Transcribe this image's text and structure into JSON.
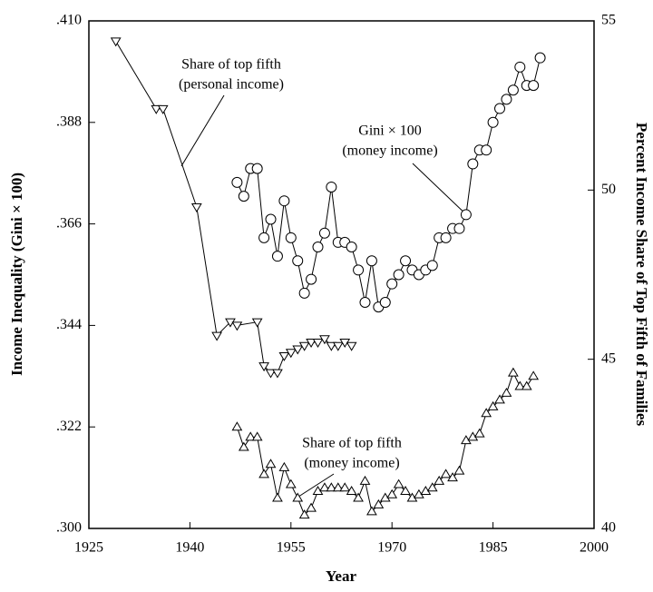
{
  "chart_data": {
    "type": "line",
    "x_label": "Year",
    "y_label": "Income Inequality (Gini × 100)",
    "y2_label": "Percent Income Share of Top Fifth of Families",
    "xlim": [
      1925,
      2000
    ],
    "xticks": [
      1925,
      1940,
      1955,
      1970,
      1985,
      2000
    ],
    "ylim": [
      0.3,
      0.41
    ],
    "yticks": [
      {
        "value": 0.3,
        "label": ".300"
      },
      {
        "value": 0.322,
        "label": ".322"
      },
      {
        "value": 0.344,
        "label": ".344"
      },
      {
        "value": 0.366,
        "label": ".366"
      },
      {
        "value": 0.388,
        "label": ".388"
      },
      {
        "value": 0.41,
        "label": ".410"
      }
    ],
    "y2lim": [
      40,
      55
    ],
    "y2ticks": [
      40,
      45,
      50,
      55
    ],
    "annotations": [
      {
        "lines": [
          "Share of top fifth",
          "(personal income)"
        ]
      },
      {
        "lines": [
          "Gini × 100",
          "(money income)"
        ]
      },
      {
        "lines": [
          "Share of top fifth",
          "(money income)"
        ]
      }
    ],
    "series": [
      {
        "color": "#000000",
        "marker": "circle",
        "axis": "y",
        "x": [
          1947,
          1948,
          1949,
          1950,
          1951,
          1952,
          1953,
          1954,
          1955,
          1956,
          1957,
          1958,
          1959,
          1960,
          1961,
          1962,
          1963,
          1964,
          1965,
          1966,
          1967,
          1968,
          1969,
          1970,
          1971,
          1972,
          1973,
          1974,
          1975,
          1976,
          1977,
          1978,
          1979,
          1980,
          1981,
          1982,
          1983,
          1984,
          1985,
          1986,
          1987,
          1988,
          1989,
          1990,
          1991,
          1992
        ],
        "values": [
          0.375,
          0.372,
          0.378,
          0.378,
          0.363,
          0.367,
          0.359,
          0.371,
          0.363,
          0.358,
          0.351,
          0.354,
          0.361,
          0.364,
          0.374,
          0.362,
          0.362,
          0.361,
          0.356,
          0.349,
          0.358,
          0.348,
          0.349,
          0.353,
          0.355,
          0.358,
          0.356,
          0.355,
          0.356,
          0.357,
          0.363,
          0.363,
          0.365,
          0.365,
          0.368,
          0.379,
          0.382,
          0.382,
          0.388,
          0.391,
          0.393,
          0.395,
          0.4,
          0.396,
          0.396,
          0.402
        ]
      },
      {
        "color": "#000000",
        "marker": "triangle-down",
        "axis": "y2",
        "x": [
          1929,
          1935,
          1936,
          1941,
          1944,
          1946,
          1947,
          1950,
          1951,
          1952,
          1953,
          1954,
          1955,
          1956,
          1957,
          1958,
          1959,
          1960,
          1961,
          1962,
          1963,
          1964
        ],
        "values": [
          54.4,
          52.4,
          52.4,
          49.5,
          45.7,
          46.1,
          46.0,
          46.1,
          44.8,
          44.6,
          44.6,
          45.1,
          45.2,
          45.3,
          45.4,
          45.5,
          45.5,
          45.6,
          45.4,
          45.4,
          45.5,
          45.4
        ]
      },
      {
        "color": "#000000",
        "marker": "triangle-up",
        "axis": "y2",
        "x": [
          1947,
          1948,
          1949,
          1950,
          1951,
          1952,
          1953,
          1954,
          1955,
          1956,
          1957,
          1958,
          1959,
          1960,
          1961,
          1962,
          1963,
          1964,
          1965,
          1966,
          1967,
          1968,
          1969,
          1970,
          1971,
          1972,
          1973,
          1974,
          1975,
          1976,
          1977,
          1978,
          1979,
          1980,
          1981,
          1982,
          1983,
          1984,
          1985,
          1986,
          1987,
          1988,
          1989,
          1990,
          1991
        ],
        "values": [
          43.0,
          42.4,
          42.7,
          42.7,
          41.6,
          41.9,
          40.9,
          41.8,
          41.3,
          40.9,
          40.4,
          40.6,
          41.1,
          41.2,
          41.2,
          41.2,
          41.2,
          41.1,
          40.9,
          41.4,
          40.5,
          40.7,
          40.9,
          41.0,
          41.3,
          41.1,
          40.9,
          41.0,
          41.1,
          41.2,
          41.4,
          41.6,
          41.5,
          41.7,
          42.6,
          42.7,
          42.8,
          43.4,
          43.6,
          43.8,
          44.0,
          44.6,
          44.2,
          44.2,
          44.5
        ]
      }
    ]
  }
}
